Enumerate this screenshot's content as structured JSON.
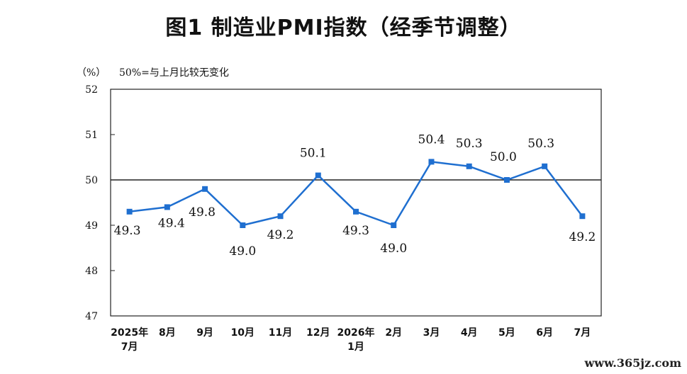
{
  "chart_data": {
    "type": "line",
    "title": "图1  制造业PMI指数（经季节调整）",
    "ylabel": "（%）",
    "reference_note": "50%=与上月比较无变化",
    "reference_value": 50,
    "ylim": [
      47,
      52
    ],
    "yticks": [
      47,
      48,
      49,
      50,
      51,
      52
    ],
    "categories": [
      [
        "2025年",
        "7月"
      ],
      [
        "8月"
      ],
      [
        "9月"
      ],
      [
        "10月"
      ],
      [
        "11月"
      ],
      [
        "12月"
      ],
      [
        "2026年",
        "1月"
      ],
      [
        "2月"
      ],
      [
        "3月"
      ],
      [
        "4月"
      ],
      [
        "5月"
      ],
      [
        "6月"
      ],
      [
        "7月"
      ]
    ],
    "series": [
      {
        "values": [
          49.3,
          49.4,
          49.8,
          49.0,
          49.2,
          50.1,
          49.3,
          49.0,
          50.4,
          50.3,
          50.0,
          50.3,
          49.2
        ],
        "labels": [
          "49.3",
          "49.4",
          "49.8",
          "49.0",
          "49.2",
          "50.1",
          "49.3",
          "49.0",
          "50.4",
          "50.3",
          "50.0",
          "50.3",
          "49.2"
        ],
        "color": "#1f6fd0"
      }
    ]
  },
  "watermark": "www.365jz.com"
}
